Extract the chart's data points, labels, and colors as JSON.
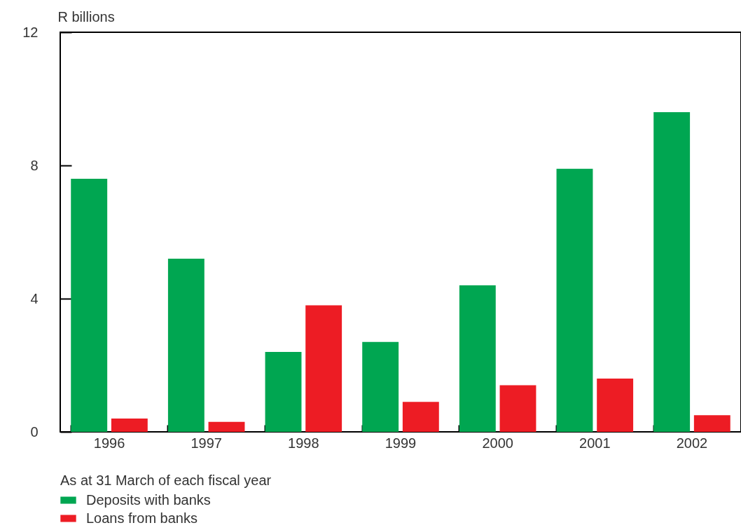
{
  "chart_data": {
    "type": "bar",
    "ylabel": "R billions",
    "categories": [
      "1996",
      "1997",
      "1998",
      "1999",
      "2000",
      "2001",
      "2002"
    ],
    "series": [
      {
        "name": "Deposits with banks",
        "color": "#00a651",
        "values": [
          7.6,
          5.2,
          2.4,
          2.7,
          4.4,
          7.9,
          9.6
        ]
      },
      {
        "name": "Loans from banks",
        "color": "#ed1c24",
        "values": [
          0.4,
          0.3,
          3.8,
          0.9,
          1.4,
          1.6,
          0.5
        ]
      }
    ],
    "ylim": [
      0,
      12
    ],
    "yticks": [
      0,
      4,
      8,
      12
    ],
    "grid": false,
    "legend": "bottom left",
    "annotations": [
      "As at 31 March of each fiscal year"
    ]
  }
}
